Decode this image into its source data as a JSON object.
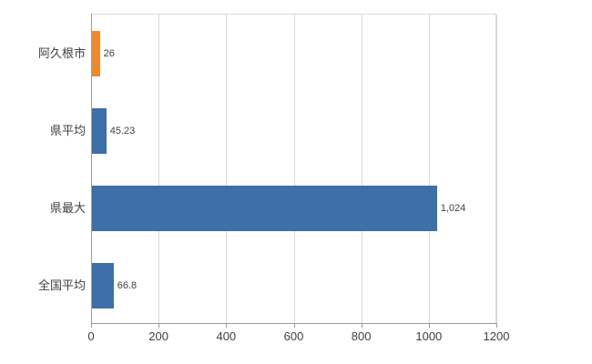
{
  "chart_data": {
    "type": "bar",
    "orientation": "horizontal",
    "title": "",
    "xlabel": "",
    "ylabel": "",
    "categories": [
      "阿久根市",
      "県平均",
      "県最大",
      "全国平均"
    ],
    "values": [
      26,
      45.23,
      1024,
      66.8
    ],
    "value_labels": [
      "26",
      "45.23",
      "1,024",
      "66.8"
    ],
    "bar_colors": [
      "#ee8a2e",
      "#3d6fa8",
      "#3d6fa8",
      "#3d6fa8"
    ],
    "xlim": [
      0,
      1200
    ],
    "x_ticks": [
      0,
      200,
      400,
      600,
      800,
      1000,
      1200
    ],
    "x_tick_labels": [
      "0",
      "200",
      "400",
      "600",
      "800",
      "1000",
      "1200"
    ],
    "grid": true,
    "legend": "none"
  },
  "colors": {
    "grid": "#d9d9d9",
    "axis": "#9b9b9b",
    "text": "#404040",
    "background": "#ffffff"
  }
}
